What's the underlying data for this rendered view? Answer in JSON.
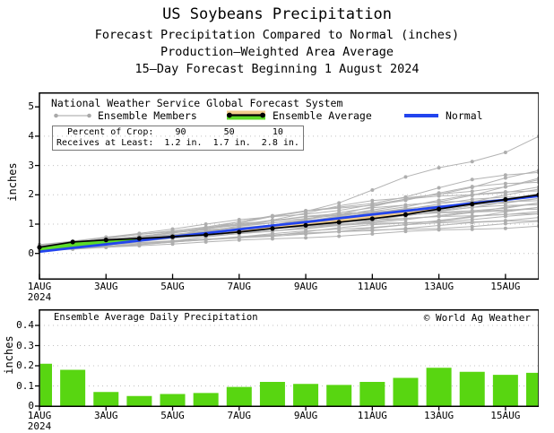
{
  "header": {
    "title": "US Soybeans Precipitation",
    "subtitle1": "Forecast Precipitation Compared to Normal (inches)",
    "subtitle2": "Production–Weighted Area Average",
    "subtitle3": "15–Day Forecast Beginning 1 August 2024"
  },
  "top_chart": {
    "legend": {
      "system": "National Weather Service Global Forecast System",
      "members": "Ensemble Members",
      "average": "Ensemble Average",
      "normal": "Normal"
    },
    "info_box": {
      "rows": [
        {
          "label": "Percent of Crop:",
          "values": [
            "90",
            "50",
            "10"
          ]
        },
        {
          "label": "Receives at Least:",
          "values": [
            "1.2 in.",
            "1.7 in.",
            "2.8 in."
          ]
        }
      ]
    },
    "ylabel": "inches",
    "yticks": [
      "0",
      "1",
      "2",
      "3",
      "4",
      "5"
    ]
  },
  "bottom_chart": {
    "title": "Ensemble Average Daily Precipitation",
    "copyright": "© World Ag Weather",
    "ylabel": "inches",
    "yticks": [
      "0",
      "0.1",
      "0.2",
      "0.3",
      "0.4"
    ]
  },
  "x_axis": {
    "tick_labels": [
      "1AUG",
      "3AUG",
      "5AUG",
      "7AUG",
      "9AUG",
      "11AUG",
      "13AUG",
      "15AUG"
    ],
    "tick_days": [
      1,
      3,
      5,
      7,
      9,
      11,
      13,
      15
    ],
    "year": "2024"
  },
  "colors": {
    "member_gray": "#b3b3b3",
    "average_black": "#000000",
    "normal_blue": "#2244ee",
    "band_above_green": "#5cdc28",
    "band_below_tan": "#f0cc8c",
    "bar_green": "#58d611",
    "grid_gray": "#c0c0c0"
  },
  "chart_data": [
    {
      "type": "line",
      "title": "Forecast cumulative precipitation compared to normal, 1-16 Aug 2024",
      "x_days": [
        1,
        2,
        3,
        4,
        5,
        6,
        7,
        8,
        9,
        10,
        11,
        12,
        13,
        14,
        15,
        16
      ],
      "ylabel": "inches",
      "ylim": [
        0,
        5
      ],
      "grid": "dotted horizontal lines at 0,1,2,3,4",
      "legend_position": "top-left inside plot",
      "series": [
        {
          "name": "Ensemble Average",
          "color_key": "average_black",
          "values": [
            0.21,
            0.39,
            0.46,
            0.51,
            0.57,
            0.635,
            0.73,
            0.85,
            0.96,
            1.065,
            1.185,
            1.325,
            1.515,
            1.685,
            1.84,
            2.0
          ]
        },
        {
          "name": "Normal",
          "color_key": "normal_blue",
          "values": [
            0.06,
            0.19,
            0.31,
            0.44,
            0.57,
            0.69,
            0.82,
            0.95,
            1.07,
            1.2,
            1.33,
            1.45,
            1.58,
            1.71,
            1.83,
            1.96
          ]
        }
      ],
      "ensemble_members": {
        "note": "approx. unlabeled gray traces, format [start_in, end_in, curve_exp]",
        "traces": [
          [
            0.1,
            0.95,
            1.0
          ],
          [
            0.15,
            1.05,
            0.9
          ],
          [
            0.2,
            1.15,
            1.1
          ],
          [
            0.08,
            1.25,
            1.0
          ],
          [
            0.25,
            1.3,
            0.85
          ],
          [
            0.12,
            1.4,
            1.15
          ],
          [
            0.3,
            1.45,
            0.95
          ],
          [
            0.1,
            1.5,
            1.25
          ],
          [
            0.18,
            1.55,
            1.0
          ],
          [
            0.22,
            1.6,
            0.9
          ],
          [
            0.14,
            1.65,
            1.1
          ],
          [
            0.28,
            1.7,
            1.0
          ],
          [
            0.1,
            1.75,
            1.2
          ],
          [
            0.2,
            1.8,
            0.9
          ],
          [
            0.16,
            1.85,
            1.05
          ],
          [
            0.24,
            1.9,
            0.95
          ],
          [
            0.12,
            1.95,
            1.15
          ],
          [
            0.3,
            2.0,
            1.0
          ],
          [
            0.15,
            2.05,
            0.9
          ],
          [
            0.2,
            2.1,
            1.2
          ],
          [
            0.1,
            2.2,
            1.0
          ],
          [
            0.26,
            2.3,
            0.95
          ],
          [
            0.14,
            2.4,
            1.25
          ],
          [
            0.22,
            2.5,
            1.05
          ],
          [
            0.17,
            2.6,
            1.35
          ],
          [
            0.12,
            2.7,
            1.15
          ],
          [
            0.25,
            2.85,
            1.3
          ],
          [
            0.2,
            4.05,
            1.7
          ]
        ]
      }
    },
    {
      "type": "bar",
      "title": "Ensemble Average Daily Precipitation",
      "x_days": [
        1,
        2,
        3,
        4,
        5,
        6,
        7,
        8,
        9,
        10,
        11,
        12,
        13,
        14,
        15,
        16
      ],
      "ylabel": "inches",
      "ylim": [
        0,
        0.48
      ],
      "grid": "dotted horizontal lines at 0.1,0.2,0.3,0.4",
      "values": [
        0.21,
        0.18,
        0.07,
        0.05,
        0.06,
        0.065,
        0.095,
        0.12,
        0.11,
        0.105,
        0.12,
        0.14,
        0.19,
        0.17,
        0.155,
        0.165
      ]
    }
  ]
}
